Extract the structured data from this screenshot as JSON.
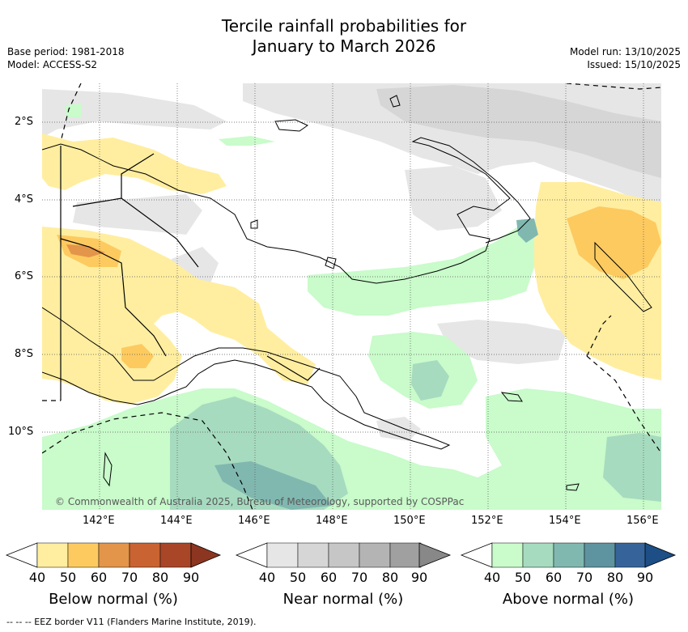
{
  "title_line1": "Tercile rainfall probabilities for",
  "title_line2": "January to March 2026",
  "base_period": "Base period: 1981-2018",
  "model": "Model: ACCESS-S2",
  "model_run": "Model run: 13/10/2025",
  "issued": "Issued: 15/10/2025",
  "copyright": "© Commonwealth of Australia 2025, Bureau of Meteorology, supported by COSPPac",
  "lat_labels": [
    "2°S",
    "4°S",
    "6°S",
    "8°S",
    "10°S"
  ],
  "lon_labels": [
    "142°E",
    "144°E",
    "146°E",
    "148°E",
    "150°E",
    "152°E",
    "154°E",
    "156°E"
  ],
  "colorbars": [
    {
      "label": "Below normal (%)",
      "ticks": [
        "40",
        "50",
        "60",
        "70",
        "80",
        "90"
      ],
      "colors": [
        "#ffeea0",
        "#fdca60",
        "#e3954a",
        "#c96332",
        "#aa4628",
        "#8c3520"
      ]
    },
    {
      "label": "Near normal (%)",
      "ticks": [
        "40",
        "50",
        "60",
        "70",
        "80",
        "90"
      ],
      "colors": [
        "#e6e6e6",
        "#d6d6d6",
        "#c6c6c6",
        "#b4b4b4",
        "#a0a0a0",
        "#888888"
      ]
    },
    {
      "label": "Above normal (%)",
      "ticks": [
        "40",
        "50",
        "60",
        "70",
        "80",
        "90"
      ],
      "colors": [
        "#c9fbcb",
        "#a6dbbf",
        "#80b8b0",
        "#5e93a0",
        "#36649a",
        "#1d4e86"
      ]
    }
  ],
  "footnote": "--  --  -- EEZ border V11 (Flanders Marine Institute, 2019)."
}
